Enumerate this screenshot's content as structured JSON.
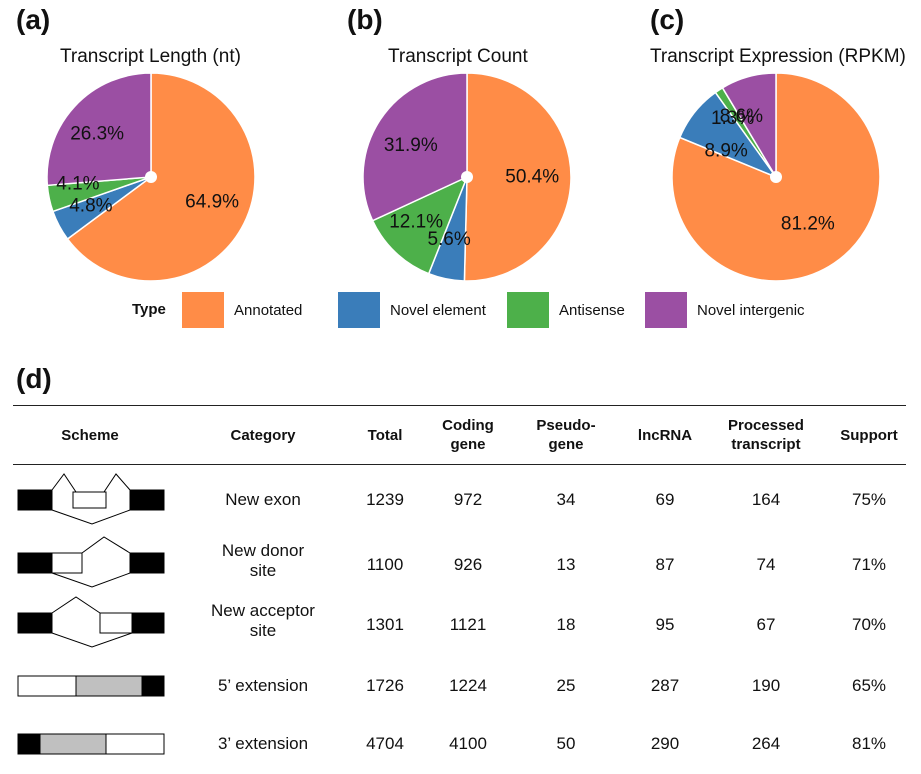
{
  "colors": {
    "annotated": "#FF8C47",
    "novel_element": "#3A7DBA",
    "antisense": "#4DB04A",
    "novel_intergenic": "#9B4FA3",
    "exon_filled": "#000000",
    "exon_partial": "#C0C0C0"
  },
  "chart_data": [
    {
      "type": "pie",
      "panel": "(a)",
      "title": "Transcript Length (nt)",
      "slices": [
        {
          "name": "Annotated",
          "value": 64.9,
          "label": "64.9%"
        },
        {
          "name": "Novel element",
          "value": 4.8,
          "label": "4.8%"
        },
        {
          "name": "Antisense",
          "value": 4.1,
          "label": "4.1%"
        },
        {
          "name": "Novel intergenic",
          "value": 26.3,
          "label": "26.3%"
        }
      ]
    },
    {
      "type": "pie",
      "panel": "(b)",
      "title": "Transcript Count",
      "slices": [
        {
          "name": "Annotated",
          "value": 50.4,
          "label": "50.4%"
        },
        {
          "name": "Novel element",
          "value": 5.6,
          "label": "5.6%"
        },
        {
          "name": "Antisense",
          "value": 12.1,
          "label": "12.1%"
        },
        {
          "name": "Novel intergenic",
          "value": 31.9,
          "label": "31.9%"
        }
      ]
    },
    {
      "type": "pie",
      "panel": "(c)",
      "title": "Transcript Expression (RPKM)",
      "slices": [
        {
          "name": "Annotated",
          "value": 81.2,
          "label": "81.2%"
        },
        {
          "name": "Novel element",
          "value": 8.9,
          "label": "8.9%"
        },
        {
          "name": "Antisense",
          "value": 1.3,
          "label": "1.3%"
        },
        {
          "name": "Novel intergenic",
          "value": 8.6,
          "label": "8.6%"
        }
      ]
    },
    {
      "type": "table",
      "panel": "(d)",
      "columns": [
        "Scheme",
        "Category",
        "Total",
        "Coding gene",
        "Pseudo-gene",
        "lncRNA",
        "Processed transcript",
        "Support"
      ],
      "rows": [
        {
          "scheme": "new-exon",
          "category": [
            "New exon"
          ],
          "total": 1239,
          "coding": 972,
          "pseudo": 34,
          "lncrna": 69,
          "processed": 164,
          "support": "75%"
        },
        {
          "scheme": "new-donor",
          "category": [
            "New donor",
            "site"
          ],
          "total": 1100,
          "coding": 926,
          "pseudo": 13,
          "lncrna": 87,
          "processed": 74,
          "support": "71%"
        },
        {
          "scheme": "new-acceptor",
          "category": [
            "New acceptor",
            "site"
          ],
          "total": 1301,
          "coding": 1121,
          "pseudo": 18,
          "lncrna": 95,
          "processed": 67,
          "support": "70%"
        },
        {
          "scheme": "five-ext",
          "category": [
            "5’ extension"
          ],
          "total": 1726,
          "coding": 1224,
          "pseudo": 25,
          "lncrna": 287,
          "processed": 190,
          "support": "65%"
        },
        {
          "scheme": "three-ext",
          "category": [
            "3’ extension"
          ],
          "total": 4704,
          "coding": 4100,
          "pseudo": 50,
          "lncrna": 290,
          "processed": 264,
          "support": "81%"
        }
      ]
    }
  ],
  "legend": {
    "title": "Type",
    "items": [
      {
        "label": "Annotated",
        "color": "#FF8C47"
      },
      {
        "label": "Novel element",
        "color": "#3A7DBA"
      },
      {
        "label": "Antisense",
        "color": "#4DB04A"
      },
      {
        "label": "Novel intergenic",
        "color": "#9B4FA3"
      }
    ]
  },
  "table_header": {
    "scheme": "Scheme",
    "category": "Category",
    "total": "Total",
    "coding": [
      "Coding",
      "gene"
    ],
    "pseudo": [
      "Pseudo-",
      "gene"
    ],
    "lncrna": "lncRNA",
    "processed": [
      "Processed",
      "transcript"
    ],
    "support": "Support"
  },
  "panel_d_label": "(d)"
}
